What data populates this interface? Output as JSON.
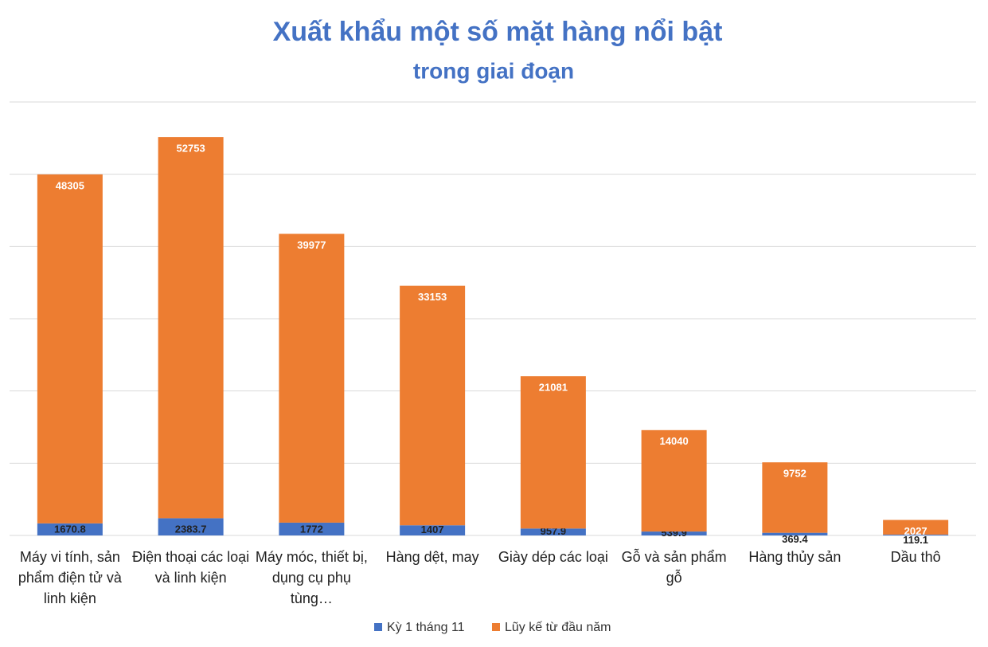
{
  "chart_data": {
    "type": "stacked_bar",
    "title": "Xuất khẩu một số mặt hàng nổi bật",
    "subtitle": "trong giai đoạn",
    "categories": [
      "Máy vi tính, sản phẩm điện tử và linh kiện",
      "Điện thoại các loại và linh kiện",
      "Máy móc, thiết bị, dụng cụ phụ tùng…",
      "Hàng dệt, may",
      "Giày dép các loại",
      "Gỗ và sản phẩm gỗ",
      "Hàng thủy sản",
      "Dầu thô"
    ],
    "series": [
      {
        "name": "Kỳ 1 tháng 11",
        "color": "#4472c4",
        "values": [
          1670.8,
          2383.7,
          1772,
          1407,
          957.9,
          539.9,
          369.4,
          119.1
        ]
      },
      {
        "name": "Lũy kế từ đầu năm",
        "color": "#ed7d31",
        "values": [
          48305,
          52753,
          39977,
          33153,
          21081,
          14040,
          9752,
          2027
        ]
      }
    ],
    "ylim": [
      0,
      60000
    ],
    "yticks": [
      0,
      10000,
      20000,
      30000,
      40000,
      50000,
      60000
    ],
    "grid": true,
    "legend": "bottom"
  }
}
